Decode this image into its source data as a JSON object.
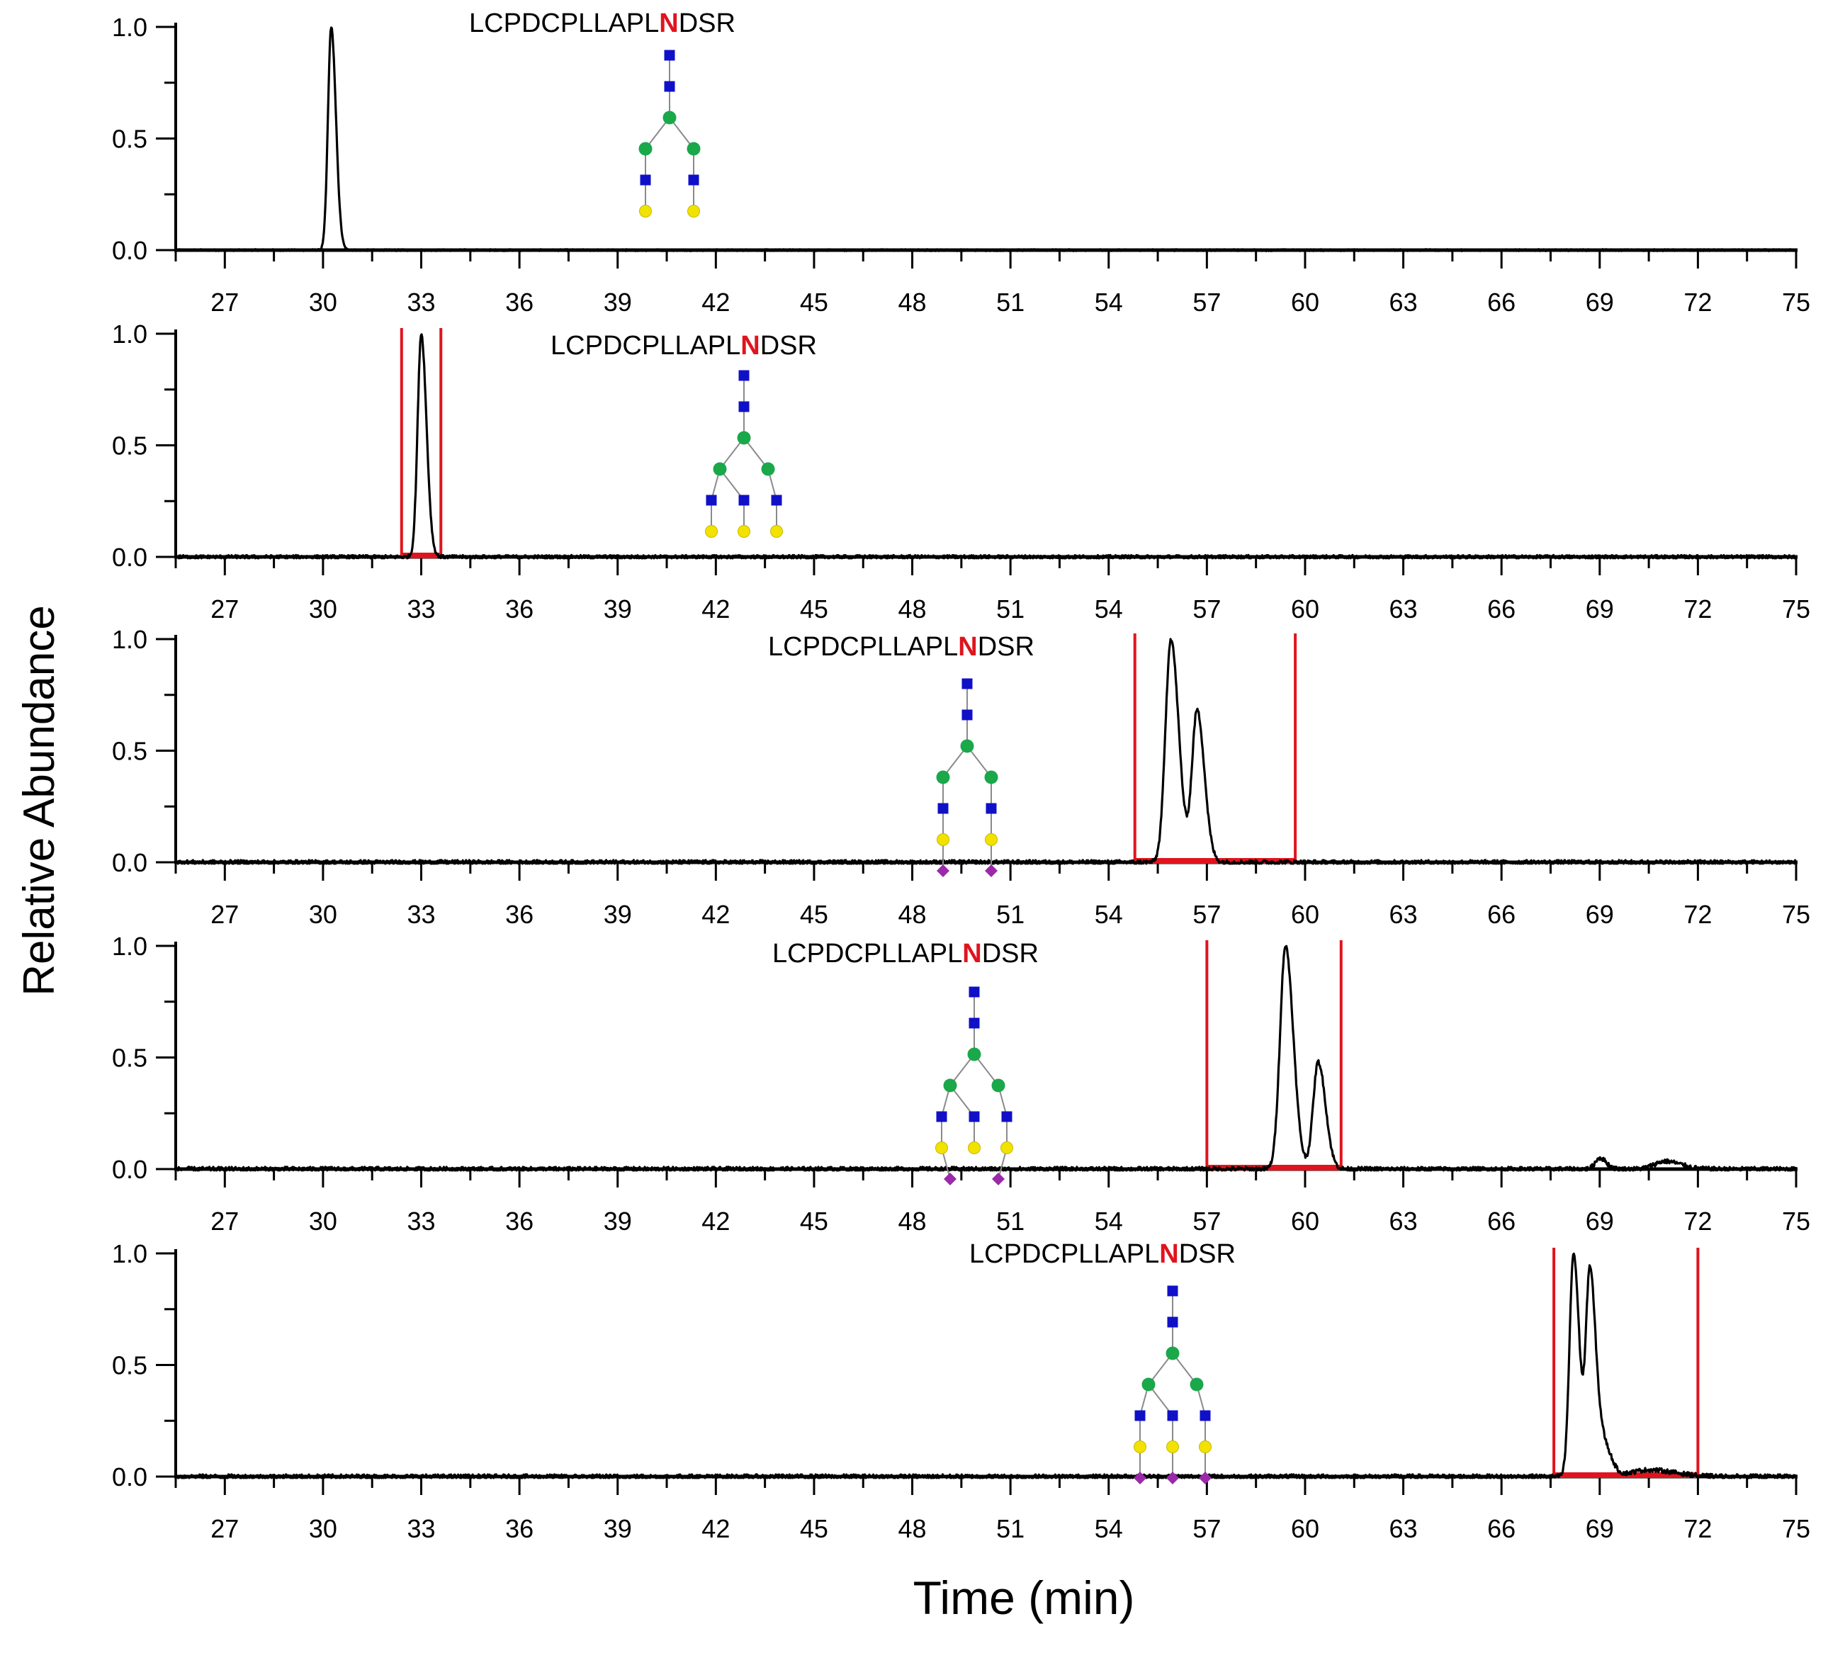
{
  "figure": {
    "ylabel": "Relative Abundance",
    "xlabel": "Time (min)"
  },
  "colors": {
    "trace": "#000000",
    "window": "#e0141e",
    "mannose": "#1aa84a",
    "glcnac": "#1010c8",
    "galactose": "#f2e200",
    "sialic": "#9a2aa8",
    "highlight": "#e0141e"
  },
  "chart_data": [
    {
      "type": "line",
      "peptide": {
        "prefix": "LCPDCPLLAPL",
        "site": "N",
        "suffix": "DSR"
      },
      "glycan": "biantennary-galactosylated",
      "xlim": [
        25.5,
        75
      ],
      "ylim": [
        0,
        1
      ],
      "xticks": [
        27,
        30,
        33,
        36,
        39,
        42,
        45,
        48,
        51,
        54,
        57,
        60,
        63,
        66,
        69,
        72,
        75
      ],
      "yticks": [
        "0.0",
        "0.5",
        "1.0"
      ],
      "window": null,
      "peaks": [
        {
          "rt": 30.25,
          "height": 1.0,
          "width": 0.18
        }
      ],
      "noise": 0.004
    },
    {
      "type": "line",
      "peptide": {
        "prefix": "LCPDCPLLAPL",
        "site": "N",
        "suffix": "DSR"
      },
      "glycan": "triantennary-galactosylated",
      "xlim": [
        25.5,
        75
      ],
      "ylim": [
        0,
        1
      ],
      "xticks": [
        27,
        30,
        33,
        36,
        39,
        42,
        45,
        48,
        51,
        54,
        57,
        60,
        63,
        66,
        69,
        72,
        75
      ],
      "yticks": [
        "0.0",
        "0.5",
        "1.0"
      ],
      "window": [
        32.4,
        33.6
      ],
      "peaks": [
        {
          "rt": 33.0,
          "height": 1.0,
          "width": 0.2
        }
      ],
      "noise": 0.008
    },
    {
      "type": "line",
      "peptide": {
        "prefix": "LCPDCPLLAPL",
        "site": "N",
        "suffix": "DSR"
      },
      "glycan": "biantennary-disialylated",
      "xlim": [
        25.5,
        75
      ],
      "ylim": [
        0,
        1
      ],
      "xticks": [
        27,
        30,
        33,
        36,
        39,
        42,
        45,
        48,
        51,
        54,
        57,
        60,
        63,
        66,
        69,
        72,
        75
      ],
      "yticks": [
        "0.0",
        "0.5",
        "1.0"
      ],
      "window": [
        54.8,
        59.7
      ],
      "peaks": [
        {
          "rt": 55.9,
          "height": 1.0,
          "width": 0.3
        },
        {
          "rt": 56.7,
          "height": 0.68,
          "width": 0.28
        }
      ],
      "noise": 0.01
    },
    {
      "type": "line",
      "peptide": {
        "prefix": "LCPDCPLLAPL",
        "site": "N",
        "suffix": "DSR"
      },
      "glycan": "triantennary-disialylated",
      "xlim": [
        25.5,
        75
      ],
      "ylim": [
        0,
        1
      ],
      "xticks": [
        27,
        30,
        33,
        36,
        39,
        42,
        45,
        48,
        51,
        54,
        57,
        60,
        63,
        66,
        69,
        72,
        75
      ],
      "yticks": [
        "0.0",
        "0.5",
        "1.0"
      ],
      "window": [
        57.0,
        61.1
      ],
      "peaks": [
        {
          "rt": 59.4,
          "height": 1.0,
          "width": 0.3
        },
        {
          "rt": 60.4,
          "height": 0.48,
          "width": 0.28
        },
        {
          "rt": 69.0,
          "height": 0.05,
          "width": 0.25
        },
        {
          "rt": 71.0,
          "height": 0.035,
          "width": 0.6
        }
      ],
      "noise": 0.01
    },
    {
      "type": "line",
      "peptide": {
        "prefix": "LCPDCPLLAPL",
        "site": "N",
        "suffix": "DSR"
      },
      "glycan": "triantennary-trisialylated",
      "xlim": [
        25.5,
        75
      ],
      "ylim": [
        0,
        1
      ],
      "xticks": [
        27,
        30,
        33,
        36,
        39,
        42,
        45,
        48,
        51,
        54,
        57,
        60,
        63,
        66,
        69,
        72,
        75
      ],
      "yticks": [
        "0.0",
        "0.5",
        "1.0"
      ],
      "window": [
        67.6,
        72.0
      ],
      "peaks": [
        {
          "rt": 68.2,
          "height": 1.0,
          "width": 0.22
        },
        {
          "rt": 68.7,
          "height": 0.92,
          "width": 0.22
        },
        {
          "rt": 69.1,
          "height": 0.15,
          "width": 0.3
        },
        {
          "rt": 70.5,
          "height": 0.03,
          "width": 1.0
        }
      ],
      "noise": 0.01
    }
  ]
}
